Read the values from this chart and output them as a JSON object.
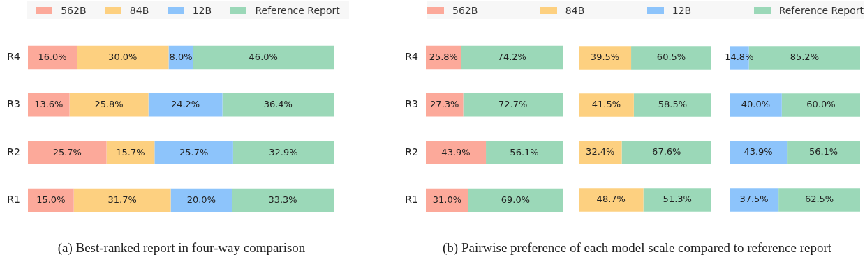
{
  "chart_data": [
    {
      "type": "bar",
      "orientation": "horizontal",
      "stacked": true,
      "title": "(a) Best-ranked report in four-way comparison",
      "legend": "top",
      "tick_labels": "y",
      "categories": [
        "R4",
        "R3",
        "R2",
        "R1"
      ],
      "series": [
        {
          "name": "562B",
          "color": "#fca99a",
          "values": [
            16.0,
            13.6,
            25.7,
            15.0
          ],
          "value_labels": [
            "16.0%",
            "13.6%",
            "25.7%",
            "15.0%"
          ]
        },
        {
          "name": "84B",
          "color": "#fdd080",
          "values": [
            30.0,
            25.8,
            15.7,
            31.7
          ],
          "value_labels": [
            "30.0%",
            "25.8%",
            "15.7%",
            "31.7%"
          ]
        },
        {
          "name": "12B",
          "color": "#8dc4fb",
          "values": [
            8.0,
            24.2,
            25.7,
            20.0
          ],
          "value_labels": [
            "8.0%",
            "24.2%",
            "25.7%",
            "20.0%"
          ]
        },
        {
          "name": "Reference Report",
          "color": "#9bd8b8",
          "values": [
            46.0,
            36.4,
            32.9,
            33.3
          ],
          "value_labels": [
            "46.0%",
            "36.4%",
            "32.9%",
            "33.3%"
          ]
        }
      ]
    },
    {
      "type": "bar",
      "orientation": "horizontal",
      "stacked": true,
      "title": "(b) Pairwise preference of each model scale compared to reference report",
      "legend": "top",
      "tick_labels": "y",
      "categories": [
        "R4",
        "R3",
        "R2",
        "R1"
      ],
      "series": [
        {
          "name": "562B",
          "color": "#fca99a",
          "values": [
            25.8,
            27.3,
            43.9,
            31.0
          ],
          "value_labels": [
            "25.8%",
            "27.3%",
            "43.9%",
            "31.0%"
          ]
        },
        {
          "name": "Reference Report",
          "color": "#9bd8b8",
          "values": [
            74.2,
            72.7,
            56.1,
            69.0
          ],
          "value_labels": [
            "74.2%",
            "72.7%",
            "56.1%",
            "69.0%"
          ]
        }
      ]
    },
    {
      "type": "bar",
      "orientation": "horizontal",
      "stacked": true,
      "legend": "top",
      "tick_labels": false,
      "categories": [
        null,
        null,
        null,
        null
      ],
      "series": [
        {
          "name": "84B",
          "color": "#fdd080",
          "values": [
            39.5,
            41.5,
            32.4,
            48.7
          ],
          "value_labels": [
            "39.5%",
            "41.5%",
            "32.4%",
            "48.7%"
          ]
        },
        {
          "color": "#9bd8b8",
          "values": [
            60.5,
            58.5,
            67.6,
            51.3
          ],
          "value_labels": [
            "60.5%",
            "58.5%",
            "67.6%",
            "51.3%"
          ]
        }
      ]
    },
    {
      "type": "bar",
      "orientation": "horizontal",
      "stacked": true,
      "legend": "top",
      "tick_labels": false,
      "categories": [
        null,
        null,
        null,
        null
      ],
      "series": [
        {
          "name": "12B",
          "color": "#8dc4fb",
          "values": [
            14.8,
            40.0,
            43.9,
            37.5
          ],
          "value_labels": [
            "14.8%",
            "40.0%",
            "43.9%",
            "37.5%"
          ]
        },
        {
          "color": "#9bd8b8",
          "values": [
            85.2,
            60.0,
            56.1,
            62.5
          ],
          "value_labels": [
            "85.2%",
            "60.0%",
            "56.1%",
            "62.5%"
          ]
        }
      ]
    }
  ]
}
